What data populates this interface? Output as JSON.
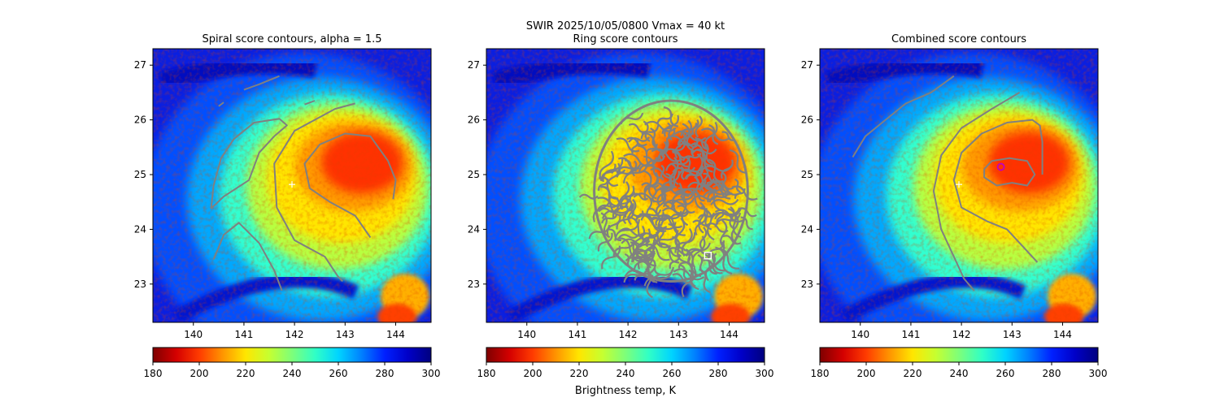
{
  "suptitle_line1": "SWIR  2025/10/05/0800    Vmax = 40 kt",
  "colorbar_label": "Brightness temp, K",
  "colormap": [
    "#7f0000",
    "#d40000",
    "#ff3b00",
    "#ff9400",
    "#ffe600",
    "#c6ff30",
    "#7dff7a",
    "#30ffc6",
    "#00d4ff",
    "#0080ff",
    "#0020ff",
    "#0000c8",
    "#00007f"
  ],
  "chart_data": [
    {
      "type": "heatmap",
      "title": "Spiral score contours, alpha =  1.5",
      "xlim": [
        139.2,
        144.7
      ],
      "ylim": [
        22.3,
        27.3
      ],
      "xticks": [
        140,
        141,
        142,
        143,
        144
      ],
      "yticks": [
        23,
        24,
        25,
        26,
        27
      ],
      "colorbar": {
        "min": 180,
        "max": 300,
        "ticks": [
          180,
          200,
          220,
          240,
          260,
          280,
          300
        ]
      },
      "markers": [
        {
          "type": "plus",
          "lon": 141.95,
          "lat": 24.82,
          "color": "#ffffff"
        }
      ],
      "contours": [
        [
          [
            140.5,
            26.25
          ],
          [
            140.6,
            26.32
          ]
        ],
        [
          [
            141.0,
            26.55
          ],
          [
            141.3,
            26.65
          ],
          [
            141.7,
            26.8
          ]
        ],
        [
          [
            142.2,
            26.28
          ],
          [
            142.4,
            26.35
          ]
        ],
        [
          [
            140.4,
            23.45
          ],
          [
            140.6,
            23.9
          ],
          [
            140.9,
            24.12
          ],
          [
            141.3,
            23.75
          ],
          [
            141.6,
            23.25
          ],
          [
            141.75,
            22.88
          ]
        ],
        [
          [
            140.35,
            24.38
          ],
          [
            140.4,
            24.8
          ],
          [
            140.55,
            25.3
          ],
          [
            140.8,
            25.65
          ],
          [
            141.2,
            25.95
          ],
          [
            141.7,
            26.02
          ],
          [
            141.85,
            25.9
          ],
          [
            141.6,
            25.7
          ],
          [
            141.3,
            25.4
          ],
          [
            141.1,
            24.9
          ],
          [
            140.6,
            24.6
          ],
          [
            140.35,
            24.38
          ]
        ],
        [
          [
            143.2,
            26.3
          ],
          [
            142.8,
            26.2
          ],
          [
            142.0,
            25.8
          ],
          [
            141.6,
            25.2
          ],
          [
            141.65,
            24.4
          ],
          [
            142.0,
            23.8
          ],
          [
            142.6,
            23.5
          ],
          [
            142.85,
            23.15
          ],
          [
            142.95,
            23.05
          ]
        ],
        [
          [
            143.5,
            23.85
          ],
          [
            143.2,
            24.25
          ],
          [
            142.7,
            24.5
          ],
          [
            142.3,
            24.75
          ],
          [
            142.2,
            25.2
          ],
          [
            142.5,
            25.55
          ],
          [
            143.0,
            25.75
          ],
          [
            143.5,
            25.7
          ],
          [
            143.85,
            25.25
          ],
          [
            144.0,
            24.9
          ],
          [
            143.95,
            24.55
          ]
        ]
      ]
    },
    {
      "type": "heatmap",
      "title": "Ring score contours",
      "xlim": [
        139.2,
        144.7
      ],
      "ylim": [
        22.3,
        27.3
      ],
      "xticks": [
        140,
        141,
        142,
        143,
        144
      ],
      "yticks": [
        23,
        24,
        25,
        26,
        27
      ],
      "colorbar": {
        "min": 180,
        "max": 300,
        "ticks": [
          180,
          200,
          220,
          240,
          260,
          280,
          300
        ]
      },
      "markers": [
        {
          "type": "square",
          "lon": 143.58,
          "lat": 23.52,
          "color": "#ffffff"
        }
      ],
      "ring_region": {
        "center": [
          142.85,
          24.7
        ],
        "rx": 1.65,
        "ry": 1.65
      },
      "contours": []
    },
    {
      "type": "heatmap",
      "title": "Combined score contours",
      "xlim": [
        139.2,
        144.7
      ],
      "ylim": [
        22.3,
        27.3
      ],
      "xticks": [
        140,
        141,
        142,
        143,
        144
      ],
      "yticks": [
        23,
        24,
        25,
        26,
        27
      ],
      "colorbar": {
        "min": 180,
        "max": 300,
        "ticks": [
          180,
          200,
          220,
          240,
          260,
          280,
          300
        ]
      },
      "markers": [
        {
          "type": "plus",
          "lon": 141.95,
          "lat": 24.82,
          "color": "#ffffff"
        },
        {
          "type": "circle",
          "lon": 142.78,
          "lat": 25.14,
          "color": "#c000c0"
        }
      ],
      "contours": [
        [
          [
            139.85,
            25.32
          ],
          [
            140.1,
            25.7
          ],
          [
            140.5,
            26.0
          ],
          [
            140.9,
            26.3
          ],
          [
            141.4,
            26.5
          ],
          [
            141.85,
            26.8
          ]
        ],
        [
          [
            143.15,
            26.5
          ],
          [
            142.6,
            26.2
          ],
          [
            142.0,
            25.85
          ],
          [
            141.6,
            25.35
          ],
          [
            141.45,
            24.7
          ],
          [
            141.6,
            24.0
          ],
          [
            141.85,
            23.5
          ],
          [
            142.05,
            23.1
          ],
          [
            142.25,
            22.88
          ]
        ],
        [
          [
            143.5,
            23.4
          ],
          [
            143.2,
            23.7
          ],
          [
            142.9,
            24.0
          ],
          [
            142.5,
            24.15
          ],
          [
            142.0,
            24.4
          ],
          [
            141.85,
            24.9
          ],
          [
            142.0,
            25.4
          ],
          [
            142.4,
            25.75
          ],
          [
            142.9,
            25.95
          ],
          [
            143.4,
            26.0
          ],
          [
            143.55,
            25.9
          ],
          [
            143.6,
            25.6
          ],
          [
            143.6,
            25.0
          ]
        ],
        [
          [
            142.45,
            25.1
          ],
          [
            142.6,
            25.25
          ],
          [
            142.95,
            25.3
          ],
          [
            143.3,
            25.25
          ],
          [
            143.45,
            25.0
          ],
          [
            143.3,
            24.8
          ],
          [
            143.0,
            24.85
          ],
          [
            142.7,
            24.8
          ],
          [
            142.45,
            24.95
          ],
          [
            142.45,
            25.1
          ]
        ]
      ]
    }
  ]
}
